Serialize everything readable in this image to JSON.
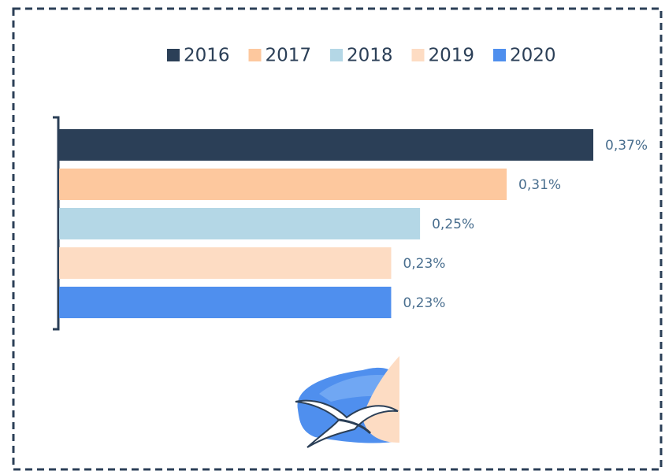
{
  "chart_data": {
    "type": "bar",
    "orientation": "horizontal",
    "legend": "top",
    "categories": [
      null
    ],
    "series": [
      {
        "name": "2016",
        "color": "#2b3f57",
        "values": [
          0.37
        ],
        "value_labels": [
          "0,37%"
        ]
      },
      {
        "name": "2017",
        "color": "#fdc89e",
        "values": [
          0.31
        ],
        "value_labels": [
          "0,31%"
        ]
      },
      {
        "name": "2018",
        "color": "#b4d7e6",
        "values": [
          0.25
        ],
        "value_labels": [
          "0,25%"
        ]
      },
      {
        "name": "2019",
        "color": "#fddcc3",
        "values": [
          0.23
        ],
        "value_labels": [
          "0,23%"
        ]
      },
      {
        "name": "2020",
        "color": "#4f8fee",
        "values": [
          0.23
        ],
        "value_labels": [
          "0,23%"
        ]
      }
    ]
  }
}
